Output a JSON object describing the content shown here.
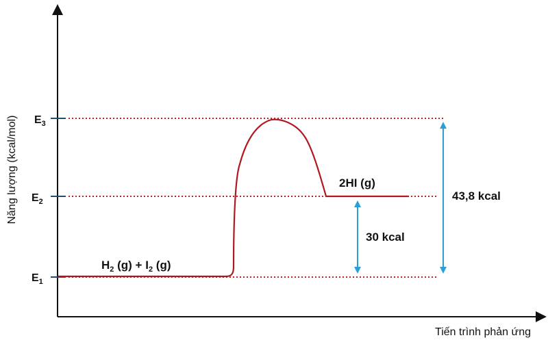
{
  "axes": {
    "y_label": "Năng lượng (kcal/mol)",
    "x_label": "Tiến trình phản ứng"
  },
  "levels": [
    {
      "id": "e3",
      "letter": "E",
      "sub": "3"
    },
    {
      "id": "e2",
      "letter": "E",
      "sub": "2"
    },
    {
      "id": "e1",
      "letter": "E",
      "sub": "1"
    }
  ],
  "reactants": {
    "p1": "H",
    "s1": "2",
    "p2": " (g) + I",
    "s2": "2",
    "p3": " (g)"
  },
  "products": "2HI (g)",
  "deltas": {
    "product_gap": "30 kcal",
    "activation_gap": "43,8 kcal"
  },
  "colors": {
    "axis": "#111111",
    "curve": "#b01820",
    "dotted": "#c0202a",
    "arrow": "#2a9ed6",
    "tick": "#1f4e6e"
  }
}
